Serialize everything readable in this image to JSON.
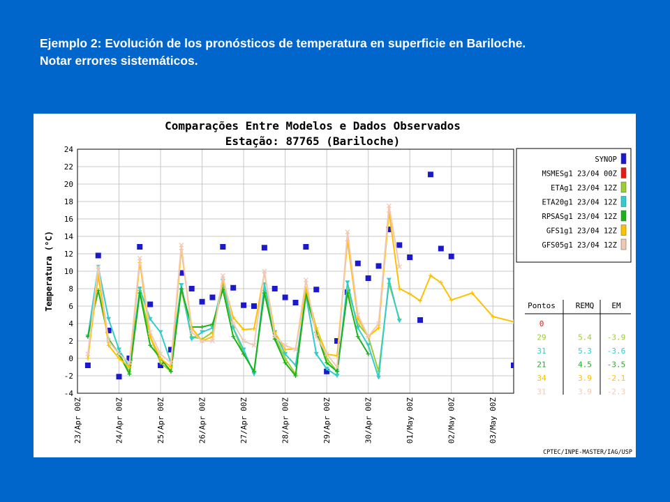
{
  "slide": {
    "title_line1": "Ejemplo 2: Evolución de los pronósticos de temperatura en superficie en Bariloche.",
    "title_line2": "Notar errores sistemáticos."
  },
  "chart_data": {
    "type": "line",
    "title": "Comparações Entre Modelos e Dados Observados",
    "subtitle": "Estação: 87765 (Bariloche)",
    "ylabel": "Temperatura (°C)",
    "ylim": [
      -4,
      24
    ],
    "yticks": [
      -4,
      -2,
      0,
      2,
      4,
      6,
      8,
      10,
      12,
      14,
      16,
      18,
      20,
      22,
      24
    ],
    "xlim": [
      0,
      10.5
    ],
    "xticks": [
      {
        "x": 0,
        "label": "23/Apr 00Z"
      },
      {
        "x": 1,
        "label": "24/Apr 00Z"
      },
      {
        "x": 2,
        "label": "25/Apr 00Z"
      },
      {
        "x": 3,
        "label": "26/Apr 00Z"
      },
      {
        "x": 4,
        "label": "27/Apr 00Z"
      },
      {
        "x": 5,
        "label": "28/Apr 00Z"
      },
      {
        "x": 6,
        "label": "29/Apr 00Z"
      },
      {
        "x": 7,
        "label": "30/Apr 00Z"
      },
      {
        "x": 8,
        "label": "01/May 00Z"
      },
      {
        "x": 9,
        "label": "02/May 00Z"
      },
      {
        "x": 10,
        "label": "03/May 00Z"
      }
    ],
    "grid": true,
    "legend_position": "right",
    "credit": "CPTEC/INPE-MASTER/IAG/USP",
    "stats_headers": [
      "Pontos",
      "REMQ",
      "EM"
    ],
    "series": [
      {
        "name": "SYNOP",
        "color": "#1a1acc",
        "style": "square",
        "points": [
          [
            0.25,
            -0.8
          ],
          [
            0.5,
            11.8
          ],
          [
            0.75,
            3.2
          ],
          [
            1.0,
            -2.1
          ],
          [
            1.25,
            0.0
          ],
          [
            1.5,
            12.8
          ],
          [
            1.75,
            6.2
          ],
          [
            2.0,
            -0.8
          ],
          [
            2.25,
            1.0
          ],
          [
            2.5,
            9.8
          ],
          [
            2.75,
            8.0
          ],
          [
            3.0,
            6.5
          ],
          [
            3.25,
            7.0
          ],
          [
            3.5,
            12.8
          ],
          [
            3.75,
            8.1
          ],
          [
            4.0,
            6.1
          ],
          [
            4.25,
            6.0
          ],
          [
            4.5,
            12.7
          ],
          [
            4.75,
            8.0
          ],
          [
            5.0,
            7.0
          ],
          [
            5.25,
            6.4
          ],
          [
            5.5,
            12.8
          ],
          [
            5.75,
            7.9
          ],
          [
            6.0,
            -1.5
          ],
          [
            6.25,
            2.0
          ],
          [
            6.5,
            7.6
          ],
          [
            6.75,
            10.9
          ],
          [
            7.0,
            9.2
          ],
          [
            7.25,
            10.6
          ],
          [
            7.5,
            14.8
          ],
          [
            7.75,
            13.0
          ],
          [
            8.0,
            11.6
          ],
          [
            8.25,
            4.4
          ],
          [
            8.5,
            21.1
          ],
          [
            8.75,
            12.6
          ],
          [
            9.0,
            11.7
          ],
          [
            10.5,
            -0.8
          ]
        ]
      },
      {
        "name": "MSMESg1 23/04 00Z",
        "color": "#e41b13",
        "style": "line",
        "pontos": "0",
        "remq": "",
        "em": "",
        "points": []
      },
      {
        "name": "ETAg1 23/04 12Z",
        "color": "#9acd32",
        "style": "line",
        "pontos": "29",
        "remq": "5.4",
        "em": "-3.9",
        "points": [
          [
            0.25,
            2.5
          ],
          [
            0.5,
            9.5
          ],
          [
            0.75,
            2.0
          ],
          [
            1.0,
            0.5
          ],
          [
            1.25,
            -1.5
          ],
          [
            1.5,
            7.8
          ],
          [
            1.75,
            2.5
          ],
          [
            2.0,
            -0.5
          ],
          [
            2.25,
            -1.5
          ],
          [
            2.5,
            7.9
          ],
          [
            2.75,
            2.5
          ],
          [
            3.0,
            2.2
          ],
          [
            3.25,
            3.0
          ],
          [
            3.5,
            8.3
          ],
          [
            3.75,
            3.5
          ],
          [
            4.0,
            0.5
          ],
          [
            4.25,
            -1.5
          ],
          [
            4.5,
            7.8
          ],
          [
            4.75,
            2.5
          ],
          [
            5.0,
            0.0
          ],
          [
            5.25,
            -1.8
          ],
          [
            5.5,
            7.2
          ],
          [
            5.75,
            3.0
          ],
          [
            6.0,
            0.0
          ],
          [
            6.25,
            -1.5
          ],
          [
            6.5,
            7.9
          ],
          [
            6.75,
            4.0
          ],
          [
            7.0,
            2.5
          ],
          [
            7.25,
            -1.5
          ],
          [
            7.5,
            8.6
          ],
          [
            7.75,
            4.5
          ]
        ]
      },
      {
        "name": "ETA20g1 23/04 12Z",
        "color": "#33cccc",
        "style": "line",
        "pontos": "31",
        "remq": "5.3",
        "em": "-3.6",
        "points": [
          [
            0.25,
            2.5
          ],
          [
            0.5,
            10.5
          ],
          [
            0.75,
            4.5
          ],
          [
            1.0,
            1.0
          ],
          [
            1.25,
            -1.0
          ],
          [
            1.5,
            8.0
          ],
          [
            1.75,
            4.5
          ],
          [
            2.0,
            3.0
          ],
          [
            2.25,
            -0.5
          ],
          [
            2.5,
            8.4
          ],
          [
            2.75,
            2.2
          ],
          [
            3.0,
            3.0
          ],
          [
            3.25,
            3.5
          ],
          [
            3.5,
            8.9
          ],
          [
            3.75,
            3.5
          ],
          [
            4.0,
            1.0
          ],
          [
            4.25,
            -1.8
          ],
          [
            4.5,
            8.5
          ],
          [
            4.75,
            3.0
          ],
          [
            5.0,
            0.5
          ],
          [
            5.25,
            -0.8
          ],
          [
            5.5,
            7.2
          ],
          [
            5.75,
            0.5
          ],
          [
            6.0,
            -1.2
          ],
          [
            6.25,
            -2.0
          ],
          [
            6.5,
            8.7
          ],
          [
            6.75,
            3.5
          ],
          [
            7.0,
            1.5
          ],
          [
            7.25,
            -2.2
          ],
          [
            7.5,
            9.0
          ],
          [
            7.75,
            4.3
          ]
        ]
      },
      {
        "name": "RPSASg1 23/04 12Z",
        "color": "#19b219",
        "style": "line",
        "pontos": "21",
        "remq": "4.5",
        "em": "-3.5",
        "points": [
          [
            0.25,
            2.5
          ],
          [
            0.5,
            7.8
          ],
          [
            0.75,
            2.2
          ],
          [
            1.0,
            0.5
          ],
          [
            1.25,
            -1.8
          ],
          [
            1.5,
            7.5
          ],
          [
            1.75,
            1.5
          ],
          [
            2.0,
            0.0
          ],
          [
            2.25,
            -1.5
          ],
          [
            2.5,
            8.0
          ],
          [
            2.75,
            3.6
          ],
          [
            3.0,
            3.6
          ],
          [
            3.25,
            3.9
          ],
          [
            3.5,
            7.9
          ],
          [
            3.75,
            2.5
          ],
          [
            4.0,
            0.5
          ],
          [
            4.25,
            -1.5
          ],
          [
            4.5,
            7.5
          ],
          [
            4.75,
            2.2
          ],
          [
            5.0,
            -0.5
          ],
          [
            5.25,
            -2.0
          ],
          [
            5.5,
            7.5
          ],
          [
            5.75,
            3.0
          ],
          [
            6.0,
            -0.5
          ],
          [
            6.25,
            -1.5
          ],
          [
            6.5,
            7.5
          ],
          [
            6.75,
            2.5
          ],
          [
            7.0,
            0.5
          ]
        ]
      },
      {
        "name": "GFS1g1 23/04 12Z",
        "color": "#ffc000",
        "style": "line",
        "pontos": "34",
        "remq": "3.9",
        "em": "-2.1",
        "points": [
          [
            0.25,
            0.0
          ],
          [
            0.5,
            9.5
          ],
          [
            0.75,
            1.5
          ],
          [
            1.0,
            0.0
          ],
          [
            1.25,
            -1.0
          ],
          [
            1.5,
            11.0
          ],
          [
            1.75,
            2.5
          ],
          [
            2.0,
            0.0
          ],
          [
            2.25,
            -1.0
          ],
          [
            2.5,
            12.5
          ],
          [
            2.75,
            3.5
          ],
          [
            3.0,
            2.0
          ],
          [
            3.25,
            2.5
          ],
          [
            3.5,
            9.0
          ],
          [
            3.75,
            4.7
          ],
          [
            4.0,
            3.3
          ],
          [
            4.25,
            3.4
          ],
          [
            4.5,
            9.8
          ],
          [
            4.75,
            3.0
          ],
          [
            5.0,
            1.0
          ],
          [
            5.25,
            1.1
          ],
          [
            5.5,
            8.0
          ],
          [
            5.75,
            3.5
          ],
          [
            6.0,
            0.5
          ],
          [
            6.25,
            0.3
          ],
          [
            6.5,
            13.5
          ],
          [
            6.75,
            4.6
          ],
          [
            7.0,
            2.5
          ],
          [
            7.25,
            3.5
          ],
          [
            7.5,
            16.8
          ],
          [
            7.75,
            8.0
          ],
          [
            8.0,
            7.4
          ],
          [
            8.25,
            6.6
          ],
          [
            8.5,
            9.5
          ],
          [
            8.75,
            8.7
          ],
          [
            9.0,
            6.7
          ],
          [
            9.5,
            7.5
          ],
          [
            10.0,
            4.8
          ],
          [
            10.5,
            4.2
          ]
        ]
      },
      {
        "name": "GFS05g1 23/04 12Z",
        "color": "#f2c8b5",
        "style": "line",
        "pontos": "31",
        "remq": "3.9",
        "em": "-2.3",
        "points": [
          [
            0.25,
            0.5
          ],
          [
            0.5,
            10.5
          ],
          [
            0.75,
            2.0
          ],
          [
            1.0,
            0.5
          ],
          [
            1.25,
            -0.5
          ],
          [
            1.5,
            11.5
          ],
          [
            1.75,
            3.0
          ],
          [
            2.0,
            0.5
          ],
          [
            2.25,
            -0.5
          ],
          [
            2.5,
            13.0
          ],
          [
            2.75,
            3.0
          ],
          [
            3.0,
            2.0
          ],
          [
            3.25,
            2.0
          ],
          [
            3.5,
            9.5
          ],
          [
            3.75,
            4.0
          ],
          [
            4.0,
            2.0
          ],
          [
            4.25,
            1.5
          ],
          [
            4.5,
            10.0
          ],
          [
            4.75,
            2.5
          ],
          [
            5.0,
            1.5
          ],
          [
            5.25,
            1.0
          ],
          [
            5.5,
            9.0
          ],
          [
            5.75,
            2.5
          ],
          [
            6.0,
            0.5
          ],
          [
            6.25,
            -1.0
          ],
          [
            6.5,
            14.5
          ],
          [
            6.75,
            5.0
          ],
          [
            7.0,
            2.5
          ],
          [
            7.25,
            4.0
          ],
          [
            7.5,
            17.5
          ],
          [
            7.75,
            10.5
          ]
        ]
      }
    ]
  }
}
